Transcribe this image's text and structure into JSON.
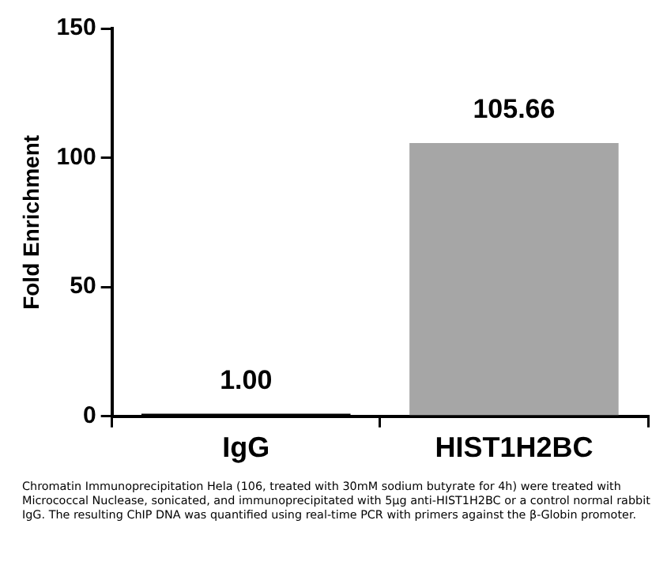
{
  "chart_data": {
    "type": "bar",
    "ylabel": "Fold Enrichment",
    "categories": [
      "IgG",
      "HIST1H2BC"
    ],
    "values": [
      1.0,
      105.66
    ],
    "colors": [
      "#000000",
      "#a6a6a6"
    ],
    "ylim": [
      0,
      150
    ],
    "yticks": [
      0,
      50,
      100,
      150
    ],
    "grid": false,
    "legend": false,
    "data_labels": true,
    "value_labels": [
      "1.00",
      "105.66"
    ],
    "annotations": [
      "Chromatin Immunoprecipitation Hela (106, treated with 30mM sodium butyrate for 4h) were treated with Micrococcal Nuclease, sonicated, and immunoprecipitated with 5μg anti-HIST1H2BC or a control normal rabbit IgG. The resulting ChIP DNA was quantified using real-time PCR with primers against the β-Globin promoter."
    ]
  }
}
